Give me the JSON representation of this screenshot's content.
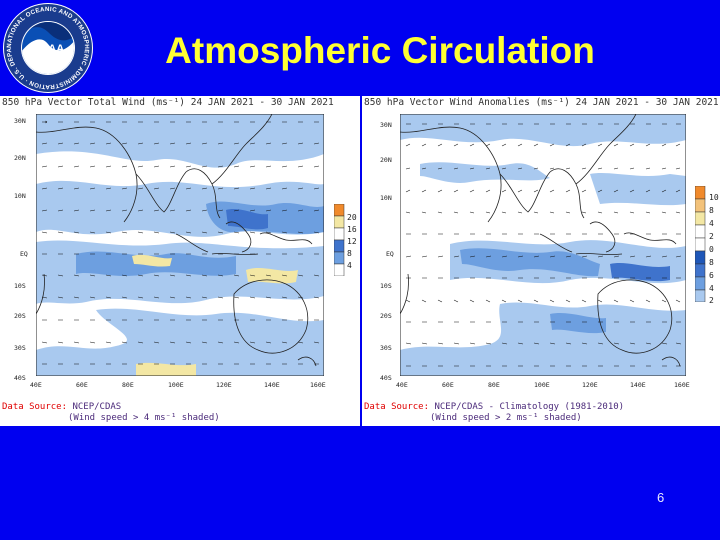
{
  "slide": {
    "title": "Atmospheric Circulation",
    "page_number": "6",
    "logo_text": "NATIONAL OCEANIC AND ATMOSPHERIC ADMINISTRATION · U.S. DEPARTMENT OF COMMERCE ·",
    "logo_center": "NOAA"
  },
  "left_panel": {
    "title": "850 hPa Vector Total Wind (ms⁻¹) 24 JAN 2021 - 30 JAN 2021",
    "lat_labels": [
      "30N",
      "20N",
      "10N",
      "EQ",
      "10S",
      "20S",
      "30S",
      "40S"
    ],
    "lon_labels": [
      "40E",
      "60E",
      "80E",
      "100E",
      "120E",
      "140E",
      "160E"
    ],
    "colorbar_labels": [
      "20",
      "16",
      "12",
      "8",
      "4"
    ],
    "source_label": "Data Source:",
    "source_text": "NCEP/CDAS",
    "note": "(Wind speed > 4 ms⁻¹ shaded)"
  },
  "right_panel": {
    "title": "850 hPa Vector Wind Anomalies (ms⁻¹) 24 JAN 2021 - 30 JAN 2021",
    "lat_labels": [
      "30N",
      "20N",
      "10N",
      "EQ",
      "10S",
      "20S",
      "30S",
      "40S"
    ],
    "lon_labels": [
      "40E",
      "60E",
      "80E",
      "100E",
      "120E",
      "140E",
      "160E"
    ],
    "colorbar_labels": [
      "10",
      "8",
      "4",
      "2",
      "0",
      "8",
      "6",
      "4",
      "2"
    ],
    "source_label": "Data Source:",
    "source_text": "NCEP/CDAS - Climatology (1981-2010)",
    "note": "(Wind speed > 2 ms⁻¹ shaded)"
  },
  "colors": {
    "background": "#0000f0",
    "title": "#ffff33",
    "shade_light": "#a9c9ef",
    "shade_mid": "#6d9fe0",
    "shade_dark": "#3f73cc",
    "shade_yellow": "#f3e7a4"
  }
}
